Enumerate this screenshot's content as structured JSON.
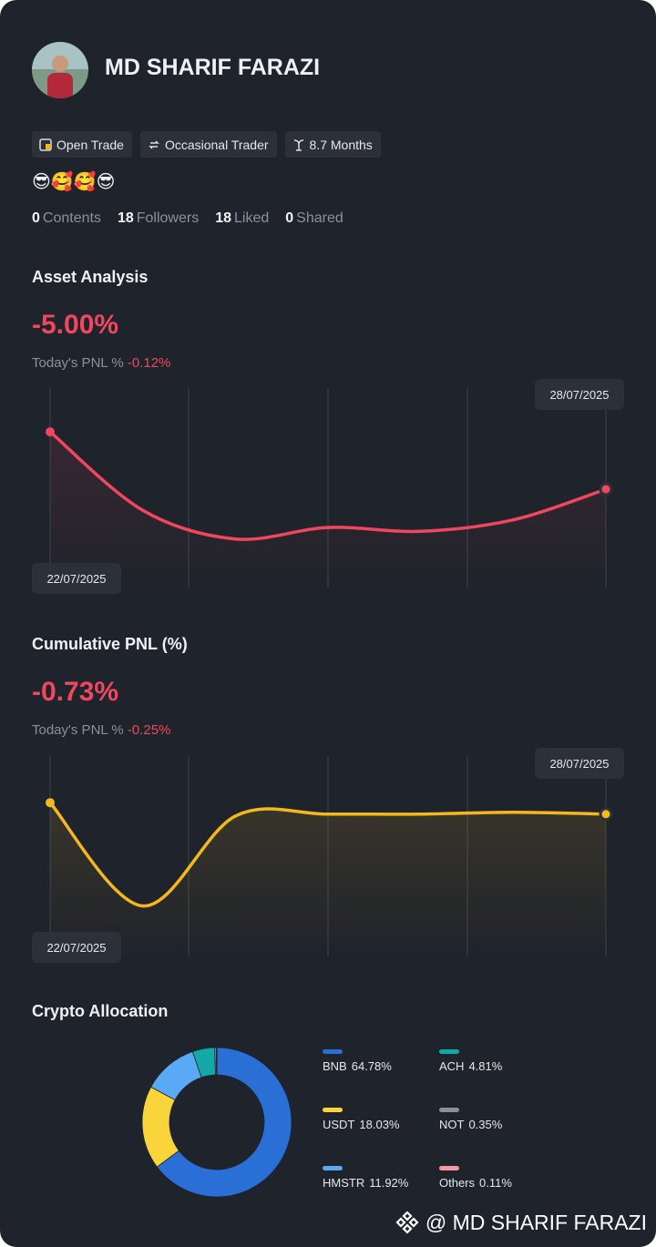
{
  "profile": {
    "name": "MD SHARIF FARAZI",
    "tags": [
      "Open Trade",
      "Occasional Trader",
      "8.7 Months"
    ],
    "emoji": "😎🥰🥰😎",
    "stats": [
      {
        "count": 0,
        "label": "Contents"
      },
      {
        "count": 18,
        "label": "Followers"
      },
      {
        "count": 18,
        "label": "Liked"
      },
      {
        "count": 0,
        "label": "Shared"
      }
    ]
  },
  "chart_data": [
    {
      "type": "line",
      "title": "Asset Analysis",
      "headline": "-5.00%",
      "subtitle": "Today's PNL %",
      "subtitle_value": "-0.12%",
      "categories": [
        "22/07/2025",
        null,
        null,
        null,
        null,
        null,
        "28/07/2025"
      ],
      "values": [
        79,
        38,
        23,
        29,
        27,
        33,
        49
      ],
      "color": "#f0475e",
      "ylim": [
        0,
        100
      ]
    },
    {
      "type": "line",
      "title": "Cumulative PNL (%)",
      "headline": "-0.73%",
      "subtitle": "Today's PNL %",
      "subtitle_value": "-0.25%",
      "categories": [
        "22/07/2025",
        null,
        null,
        null,
        null,
        null,
        "28/07/2025"
      ],
      "values": [
        78,
        24,
        71,
        72,
        72,
        73,
        72
      ],
      "color": "#f3b81d",
      "ylim": [
        0,
        100
      ]
    },
    {
      "type": "pie",
      "title": "Crypto Allocation",
      "categories": [
        "BNB",
        "USDT",
        "HMSTR",
        "ACH",
        "NOT",
        "Others"
      ],
      "values": [
        64.78,
        18.03,
        11.92,
        4.81,
        0.35,
        0.11
      ],
      "value_labels": [
        "64.78%",
        "18.03%",
        "11.92%",
        "4.81%",
        "0.35%",
        "0.11%"
      ],
      "colors": [
        "#2a6fd6",
        "#f9d43a",
        "#5aa9f5",
        "#14a9a8",
        "#8a8f98",
        "#f39aa4"
      ]
    }
  ],
  "footer": "@ MD SHARIF FARAZI"
}
